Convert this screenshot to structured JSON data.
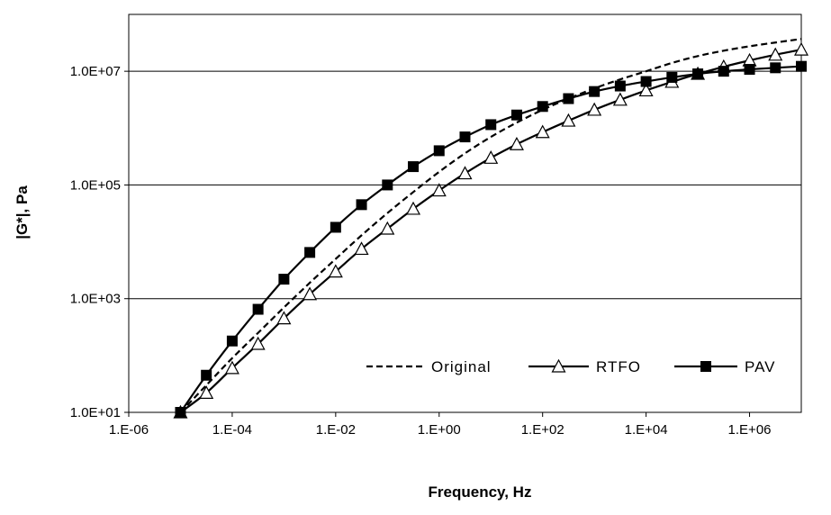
{
  "chart_data": {
    "type": "line",
    "xlabel": "Frequency, Hz",
    "ylabel": "|G*|, Pa",
    "x_scale": "log",
    "y_scale": "log",
    "xlim": [
      1e-06,
      10000000.0
    ],
    "ylim": [
      10,
      100000000.0
    ],
    "x_ticks": [
      1e-06,
      0.0001,
      0.01,
      1,
      100,
      10000.0,
      1000000.0
    ],
    "x_tick_labels": [
      "1.E-06",
      "1.E-04",
      "1.E-02",
      "1.E+00",
      "1.E+02",
      "1.E+04",
      "1.E+06"
    ],
    "y_ticks": [
      10,
      1000,
      100000,
      10000000
    ],
    "y_tick_labels": [
      "1.0E+01",
      "1.0E+03",
      "1.0E+05",
      "1.0E+07"
    ],
    "grid": "horizontal major gridlines",
    "legend_position": "lower-right inside plot",
    "x": [
      1e-05,
      3.16e-05,
      0.0001,
      0.000316,
      0.001,
      0.00316,
      0.01,
      0.0316,
      0.1,
      0.316,
      1,
      3.16,
      10,
      31.6,
      100,
      316,
      1000,
      3160,
      10000,
      31600,
      100000,
      316000,
      1000000,
      3160000,
      10000000
    ],
    "series": [
      {
        "name": "Original",
        "style": "dashed",
        "marker": "none",
        "values": [
          10,
          30,
          90,
          250,
          700,
          1900,
          5000,
          13000,
          32000,
          75000,
          170000,
          360000,
          700000,
          1250000,
          2100000,
          3300000,
          5000000,
          7200000,
          10000000,
          14000000,
          18500000,
          23000000,
          27500000,
          32000000,
          37000000
        ]
      },
      {
        "name": "RTFO",
        "style": "solid",
        "marker": "open-triangle",
        "values": [
          10,
          22,
          60,
          160,
          450,
          1200,
          3000,
          7500,
          17000,
          38000,
          80000,
          160000,
          300000,
          520000,
          850000,
          1350000,
          2100000,
          3150000,
          4600000,
          6500000,
          9000000,
          12000000,
          15500000,
          19500000,
          24000000
        ]
      },
      {
        "name": "PAV",
        "style": "solid",
        "marker": "filled-square",
        "values": [
          10,
          45,
          180,
          650,
          2200,
          6500,
          18000,
          45000,
          100000,
          210000,
          400000,
          700000,
          1150000,
          1700000,
          2400000,
          3300000,
          4400000,
          5500000,
          6600000,
          7800000,
          9000000,
          10000000,
          10800000,
          11500000,
          12200000
        ]
      }
    ]
  }
}
